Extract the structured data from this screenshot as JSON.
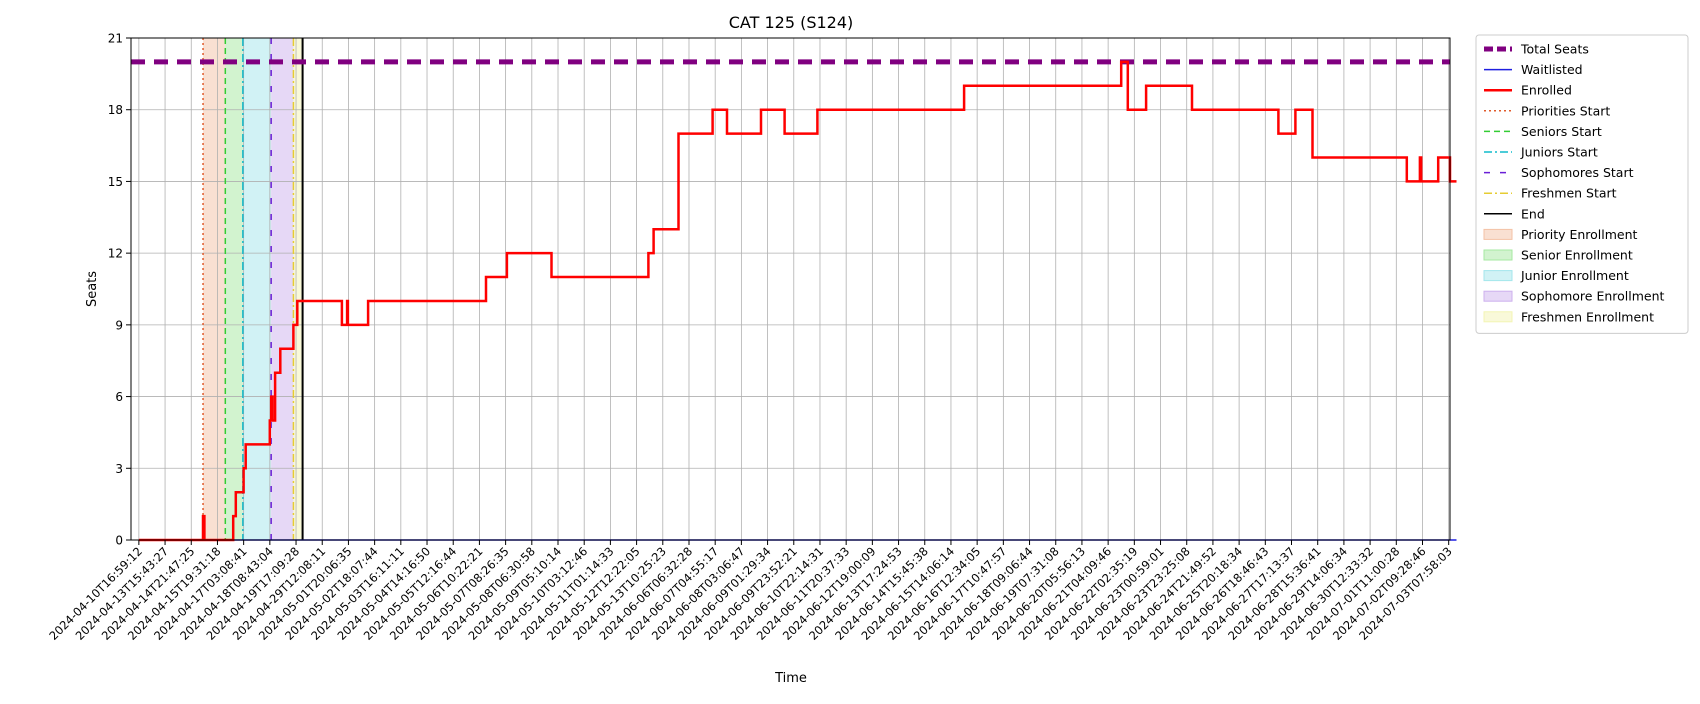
{
  "chart_data": {
    "type": "line",
    "title": "CAT 125 (S124)",
    "xlabel": "Time",
    "ylabel": "Seats",
    "ylim": [
      0,
      21
    ],
    "yticks": [
      0,
      3,
      6,
      9,
      12,
      15,
      18,
      21
    ],
    "grid": true,
    "legend_position": "outside-right",
    "x_tick_labels": [
      "2024-04-10T16:59:12",
      "2024-04-13T15:43:27",
      "2024-04-14T21:47:25",
      "2024-04-15T19:31:18",
      "2024-04-17T03:08:41",
      "2024-04-18T08:43:04",
      "2024-04-19T17:09:28",
      "2024-04-29T12:08:11",
      "2024-05-01T20:06:35",
      "2024-05-02T18:07:44",
      "2024-05-03T16:11:11",
      "2024-05-04T14:16:50",
      "2024-05-05T12:16:44",
      "2024-05-06T10:22:21",
      "2024-05-07T08:26:35",
      "2024-05-08T06:30:58",
      "2024-05-09T05:10:14",
      "2024-05-10T03:12:46",
      "2024-05-11T01:14:33",
      "2024-05-12T12:22:05",
      "2024-05-13T10:25:23",
      "2024-06-06T06:32:28",
      "2024-06-07T04:55:17",
      "2024-06-08T03:06:47",
      "2024-06-09T01:29:34",
      "2024-06-09T23:52:21",
      "2024-06-10T22:14:31",
      "2024-06-11T20:37:33",
      "2024-06-12T19:00:09",
      "2024-06-13T17:24:53",
      "2024-06-14T15:45:38",
      "2024-06-15T14:06:14",
      "2024-06-16T12:34:05",
      "2024-06-17T10:47:57",
      "2024-06-18T09:06:44",
      "2024-06-19T07:31:08",
      "2024-06-20T05:56:13",
      "2024-06-21T04:09:46",
      "2024-06-22T02:35:19",
      "2024-06-23T00:59:01",
      "2024-06-23T23:25:08",
      "2024-06-24T21:49:52",
      "2024-06-25T20:18:34",
      "2024-06-26T18:46:43",
      "2024-06-27T17:13:37",
      "2024-06-28T15:36:41",
      "2024-06-29T14:06:34",
      "2024-06-30T12:33:32",
      "2024-07-01T11:00:28",
      "2024-07-02T09:28:46",
      "2024-07-03T07:58:03"
    ],
    "total_seats": 20,
    "waitlisted": [
      [
        0,
        0
      ],
      [
        50.3,
        0
      ]
    ],
    "enrolled": [
      [
        0,
        0
      ],
      [
        2.45,
        0
      ],
      [
        2.45,
        1
      ],
      [
        2.5,
        1
      ],
      [
        2.5,
        0
      ],
      [
        3.6,
        0
      ],
      [
        3.6,
        1
      ],
      [
        3.7,
        1
      ],
      [
        3.7,
        2
      ],
      [
        4.0,
        2
      ],
      [
        4.0,
        3
      ],
      [
        4.08,
        3
      ],
      [
        4.08,
        4
      ],
      [
        5.0,
        4
      ],
      [
        5.0,
        5
      ],
      [
        5.05,
        5
      ],
      [
        5.05,
        6
      ],
      [
        5.1,
        6
      ],
      [
        5.1,
        5
      ],
      [
        5.2,
        5
      ],
      [
        5.2,
        7
      ],
      [
        5.4,
        7
      ],
      [
        5.4,
        8
      ],
      [
        5.9,
        8
      ],
      [
        5.9,
        9
      ],
      [
        6.05,
        9
      ],
      [
        6.05,
        10
      ],
      [
        7.75,
        10
      ],
      [
        7.75,
        9
      ],
      [
        7.95,
        9
      ],
      [
        7.95,
        10
      ],
      [
        7.98,
        10
      ],
      [
        7.98,
        9
      ],
      [
        8.75,
        9
      ],
      [
        8.75,
        10
      ],
      [
        13.25,
        10
      ],
      [
        13.25,
        11
      ],
      [
        14.05,
        11
      ],
      [
        14.05,
        12
      ],
      [
        15.75,
        12
      ],
      [
        15.75,
        11
      ],
      [
        19.45,
        11
      ],
      [
        19.45,
        12
      ],
      [
        19.65,
        12
      ],
      [
        19.65,
        13
      ],
      [
        20.6,
        13
      ],
      [
        20.6,
        17
      ],
      [
        21.9,
        17
      ],
      [
        21.9,
        18
      ],
      [
        22.45,
        18
      ],
      [
        22.45,
        17
      ],
      [
        23.75,
        17
      ],
      [
        23.75,
        18
      ],
      [
        24.65,
        18
      ],
      [
        24.65,
        17
      ],
      [
        25.9,
        17
      ],
      [
        25.9,
        18
      ],
      [
        31.5,
        18
      ],
      [
        31.5,
        19
      ],
      [
        37.5,
        19
      ],
      [
        37.5,
        20
      ],
      [
        37.75,
        20
      ],
      [
        37.75,
        18
      ],
      [
        38.45,
        18
      ],
      [
        38.45,
        19
      ],
      [
        40.2,
        19
      ],
      [
        40.2,
        18
      ],
      [
        43.5,
        18
      ],
      [
        43.5,
        17
      ],
      [
        44.15,
        17
      ],
      [
        44.15,
        18
      ],
      [
        44.8,
        18
      ],
      [
        44.8,
        16
      ],
      [
        48.4,
        16
      ],
      [
        48.4,
        15
      ],
      [
        48.9,
        15
      ],
      [
        48.9,
        16
      ],
      [
        48.95,
        16
      ],
      [
        48.95,
        15
      ],
      [
        49.6,
        15
      ],
      [
        49.6,
        16
      ],
      [
        50.05,
        16
      ],
      [
        50.05,
        15
      ],
      [
        50.3,
        15
      ]
    ],
    "phases": [
      {
        "name": "Priority Enrollment",
        "start": 2.45,
        "end": 3.3,
        "color": "#f4c2a6"
      },
      {
        "name": "Senior Enrollment",
        "start": 3.3,
        "end": 3.97,
        "color": "#a6e8a0"
      },
      {
        "name": "Junior Enrollment",
        "start": 3.97,
        "end": 5.05,
        "color": "#a4e6ec"
      },
      {
        "name": "Sophomore Enrollment",
        "start": 5.05,
        "end": 5.9,
        "color": "#cdb1ee"
      },
      {
        "name": "Freshmen Enrollment",
        "start": 5.9,
        "end": 6.25,
        "color": "#f3f4b4"
      }
    ],
    "markers": [
      {
        "name": "Priorities Start",
        "x": 2.45,
        "color": "#e05b2c"
      },
      {
        "name": "Seniors Start",
        "x": 3.3,
        "color": "#33cc33"
      },
      {
        "name": "Juniors Start",
        "x": 3.97,
        "color": "#11bbcc"
      },
      {
        "name": "Sophomores Start",
        "x": 5.05,
        "color": "#6a1fd6"
      },
      {
        "name": "Freshmen Start",
        "x": 5.9,
        "color": "#e6cc33"
      },
      {
        "name": "End",
        "x": 6.25,
        "color": "#000000"
      }
    ],
    "colors": {
      "total_seats": "#800080",
      "waitlisted": "#1f1fe0",
      "enrolled": "#ff0000",
      "grid": "#b0b0b0"
    },
    "legend": [
      {
        "label": "Total Seats",
        "kind": "line",
        "color": "#800080",
        "style": "thick-dashed"
      },
      {
        "label": "Waitlisted",
        "kind": "line",
        "color": "#1f1fe0",
        "style": "solid"
      },
      {
        "label": "Enrolled",
        "kind": "line",
        "color": "#ff0000",
        "style": "solid-thick"
      },
      {
        "label": "Priorities Start",
        "kind": "line",
        "color": "#e05b2c",
        "style": "dotted"
      },
      {
        "label": "Seniors Start",
        "kind": "line",
        "color": "#33cc33",
        "style": "dashed"
      },
      {
        "label": "Juniors Start",
        "kind": "line",
        "color": "#11bbcc",
        "style": "dashdot"
      },
      {
        "label": "Sophomores Start",
        "kind": "line",
        "color": "#6a1fd6",
        "style": "loosedash"
      },
      {
        "label": "Freshmen Start",
        "kind": "line",
        "color": "#e6cc33",
        "style": "dashdot"
      },
      {
        "label": "End",
        "kind": "line",
        "color": "#000000",
        "style": "solid"
      },
      {
        "label": "Priority Enrollment",
        "kind": "patch",
        "color": "#f4c2a6"
      },
      {
        "label": "Senior Enrollment",
        "kind": "patch",
        "color": "#a6e8a0"
      },
      {
        "label": "Junior Enrollment",
        "kind": "patch",
        "color": "#a4e6ec"
      },
      {
        "label": "Sophomore Enrollment",
        "kind": "patch",
        "color": "#cdb1ee"
      },
      {
        "label": "Freshmen Enrollment",
        "kind": "patch",
        "color": "#f3f4b4"
      }
    ]
  }
}
